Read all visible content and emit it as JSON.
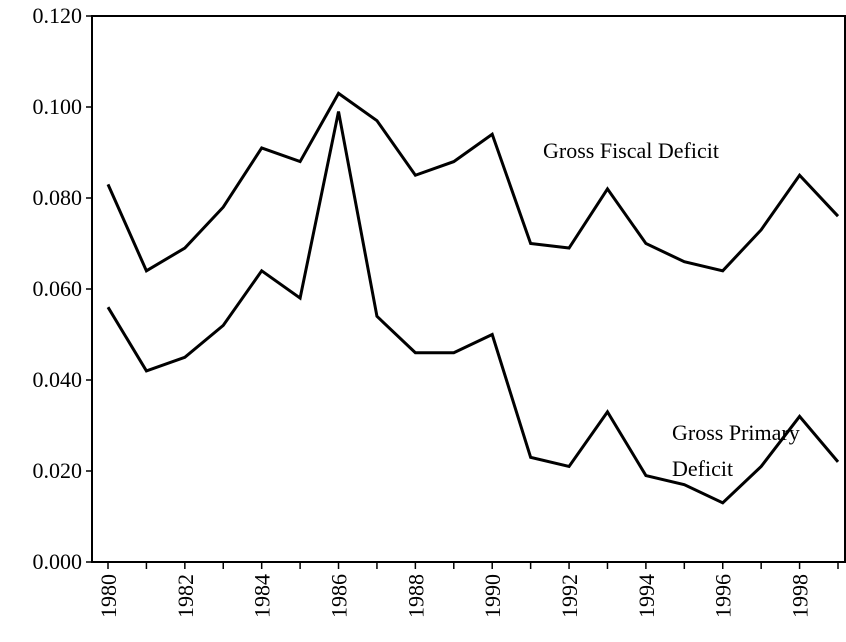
{
  "chart_data": {
    "type": "line",
    "x": [
      1980,
      1981,
      1982,
      1983,
      1984,
      1985,
      1986,
      1987,
      1988,
      1989,
      1990,
      1991,
      1992,
      1993,
      1994,
      1995,
      1996,
      1997,
      1998,
      1999
    ],
    "series": [
      {
        "color": "#000000",
        "values": [
          0.083,
          0.064,
          0.069,
          0.078,
          0.091,
          0.088,
          0.103,
          0.097,
          0.085,
          0.088,
          0.094,
          0.07,
          0.069,
          0.082,
          0.07,
          0.066,
          0.064,
          0.073,
          0.085,
          0.076
        ]
      },
      {
        "color": "#000000",
        "values": [
          0.056,
          0.042,
          0.045,
          0.052,
          0.064,
          0.058,
          0.099,
          0.054,
          0.046,
          0.046,
          0.05,
          0.023,
          0.021,
          0.033,
          0.019,
          0.017,
          0.013,
          0.021,
          0.032,
          0.022
        ]
      }
    ],
    "annotations": [
      "Gross Fiscal Deficit",
      "Gross Primary",
      "Deficit"
    ],
    "xlim": [
      1980,
      1999
    ],
    "xticks": [
      1980,
      1982,
      1984,
      1986,
      1988,
      1990,
      1992,
      1994,
      1996,
      1998
    ],
    "ylim": [
      0,
      0.12
    ],
    "yticks": [
      {
        "value": 0,
        "label": "0.000"
      },
      {
        "value": 0.02,
        "label": "0.020"
      },
      {
        "value": 0.04,
        "label": "0.040"
      },
      {
        "value": 0.06,
        "label": "0.060"
      },
      {
        "value": 0.08,
        "label": "0.080"
      },
      {
        "value": 0.1,
        "label": "0.100"
      },
      {
        "value": 0.12,
        "label": "0.120"
      }
    ],
    "grid": false
  }
}
